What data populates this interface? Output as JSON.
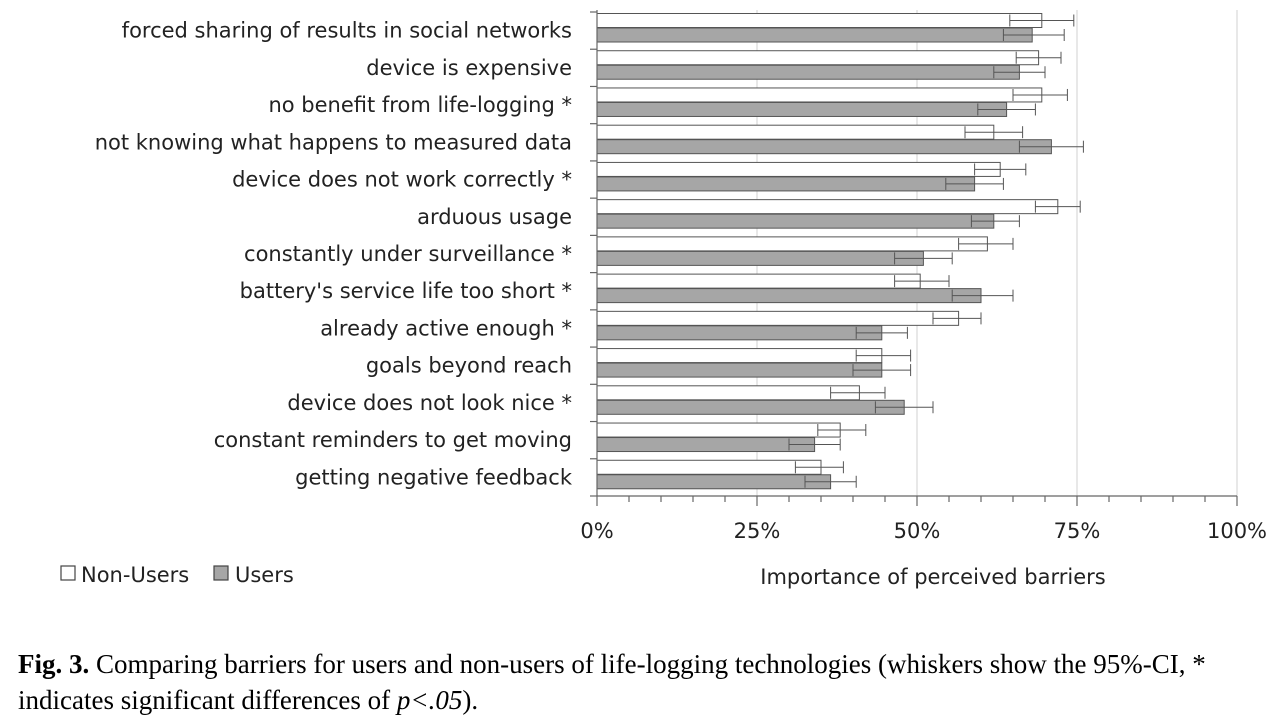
{
  "chart_data": {
    "type": "bar",
    "orientation": "horizontal",
    "categories": [
      "forced sharing of results in social networks",
      "device is expensive",
      "no benefit from life-logging *",
      "not knowing what happens to measured data",
      "device does not work correctly *",
      "arduous usage",
      "constantly under surveillance *",
      "battery's service life too short *",
      "already active enough *",
      "goals beyond reach",
      "device does not look nice *",
      "constant reminders to get moving",
      "getting negative feedback"
    ],
    "series": [
      {
        "name": "Non-Users",
        "color": "#ffffff",
        "values": [
          69.5,
          69.0,
          69.5,
          62.0,
          63.0,
          72.0,
          61.0,
          50.5,
          56.5,
          44.5,
          41.0,
          38.0,
          35.0
        ],
        "ci_low": [
          64.5,
          65.5,
          65.0,
          57.5,
          59.0,
          68.5,
          56.5,
          46.5,
          52.5,
          40.5,
          36.5,
          34.5,
          31.0
        ],
        "ci_high": [
          74.5,
          72.5,
          73.5,
          66.5,
          67.0,
          75.5,
          65.0,
          55.0,
          60.0,
          49.0,
          45.0,
          42.0,
          38.5
        ]
      },
      {
        "name": "Users",
        "color": "#a6a6a6",
        "values": [
          68.0,
          66.0,
          64.0,
          71.0,
          59.0,
          62.0,
          51.0,
          60.0,
          44.5,
          44.5,
          48.0,
          34.0,
          36.5
        ],
        "ci_low": [
          63.5,
          62.0,
          59.5,
          66.0,
          54.5,
          58.5,
          46.5,
          55.5,
          40.5,
          40.0,
          43.5,
          30.0,
          32.5
        ],
        "ci_high": [
          73.0,
          70.0,
          68.5,
          76.0,
          63.5,
          66.0,
          55.5,
          65.0,
          48.5,
          49.0,
          52.5,
          38.0,
          40.5
        ]
      }
    ],
    "xlim": [
      0,
      100
    ],
    "xticks": [
      0,
      25,
      50,
      75,
      100
    ],
    "xtick_labels": [
      "0%",
      "25%",
      "50%",
      "75%",
      "100%"
    ],
    "xlabel": "Importance of perceived barriers",
    "grid": "vertical",
    "legend": "bottom-left"
  },
  "caption": {
    "fig_label": "Fig. 3.",
    "text_before": " Comparing barriers for users and non-users of life-logging technologies (whiskers show the 95%-CI, * indicates significant differences of ",
    "p_symbol": "p",
    "p_value": "<.05",
    "text_after": ")."
  }
}
